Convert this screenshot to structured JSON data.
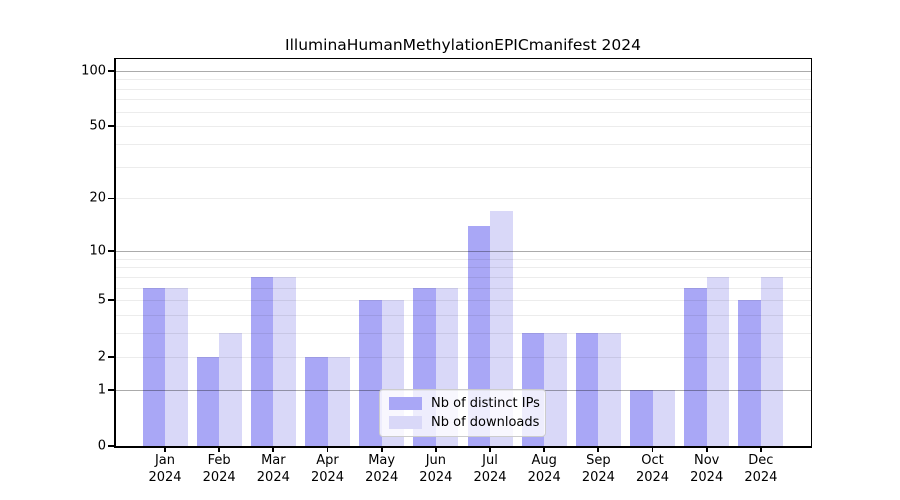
{
  "chart_data": {
    "type": "bar",
    "title": "IlluminaHumanMethylationEPICmanifest 2024",
    "categories": [
      "Jan",
      "Feb",
      "Mar",
      "Apr",
      "May",
      "Jun",
      "Jul",
      "Aug",
      "Sep",
      "Oct",
      "Nov",
      "Dec"
    ],
    "year_label": "2024",
    "series": [
      {
        "name": "Nb of distinct IPs",
        "color": "#a9a7f6",
        "values": [
          6,
          2,
          7,
          2,
          5,
          6,
          14,
          3,
          3,
          1,
          6,
          5
        ]
      },
      {
        "name": "Nb of downloads",
        "color": "#d9d8f8",
        "values": [
          6,
          3,
          7,
          2,
          5,
          6,
          17,
          3,
          3,
          1,
          7,
          7
        ]
      }
    ],
    "xlabel": "",
    "ylabel": "",
    "yscale": "log1p",
    "ylim": [
      0,
      114
    ],
    "yticks": [
      0,
      1,
      2,
      5,
      10,
      20,
      50,
      100
    ],
    "ytick_labels": [
      "0",
      "1",
      "2",
      "5",
      "10",
      "20",
      "50",
      "100"
    ],
    "grid_major": [
      1,
      10,
      100
    ],
    "grid_minor": [
      2,
      3,
      4,
      5,
      6,
      7,
      8,
      9,
      20,
      30,
      40,
      50,
      60,
      70,
      80,
      90
    ],
    "grid": "on",
    "legend_position": "lower-center"
  }
}
